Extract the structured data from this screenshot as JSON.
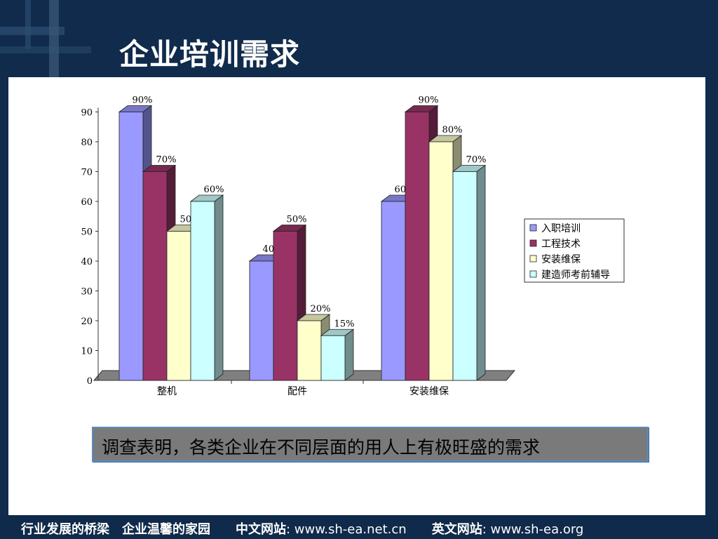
{
  "slide_title": "企业培训需求",
  "chart_data": {
    "type": "bar",
    "categories": [
      "整机",
      "配件",
      "安装维保"
    ],
    "series": [
      {
        "name": "入职培训",
        "values": [
          90,
          40,
          60
        ],
        "labels": [
          "90%",
          "40%",
          "60%"
        ],
        "color": "#9999ff"
      },
      {
        "name": "工程技术",
        "values": [
          70,
          50,
          90
        ],
        "labels": [
          "70%",
          "50%",
          "90%"
        ],
        "color": "#993366"
      },
      {
        "name": "安装维保",
        "values": [
          50,
          20,
          80
        ],
        "labels": [
          "50%",
          "20%",
          "80%"
        ],
        "color": "#ffffcc"
      },
      {
        "name": "建造师考前辅导",
        "values": [
          60,
          15,
          70
        ],
        "labels": [
          "60%",
          "15%",
          "70%"
        ],
        "color": "#ccffff"
      }
    ],
    "ylim": [
      0,
      90
    ],
    "yticks": [
      0,
      10,
      20,
      30,
      40,
      50,
      60,
      70,
      80,
      90
    ],
    "legend_position": "right",
    "grid": false,
    "style": "3d-clustered-column"
  },
  "callout_text": "调查表明，各类企业在不同层面的用人上有极旺盛的需求",
  "footer": {
    "slogan1": "行业发展的桥梁",
    "slogan2": "企业温馨的家园",
    "cn_site_label": "中文网站",
    "cn_site_url": ": www.sh-ea.net.cn",
    "en_site_label": "英文网站",
    "en_site_url": ": www.sh-ea.org"
  }
}
